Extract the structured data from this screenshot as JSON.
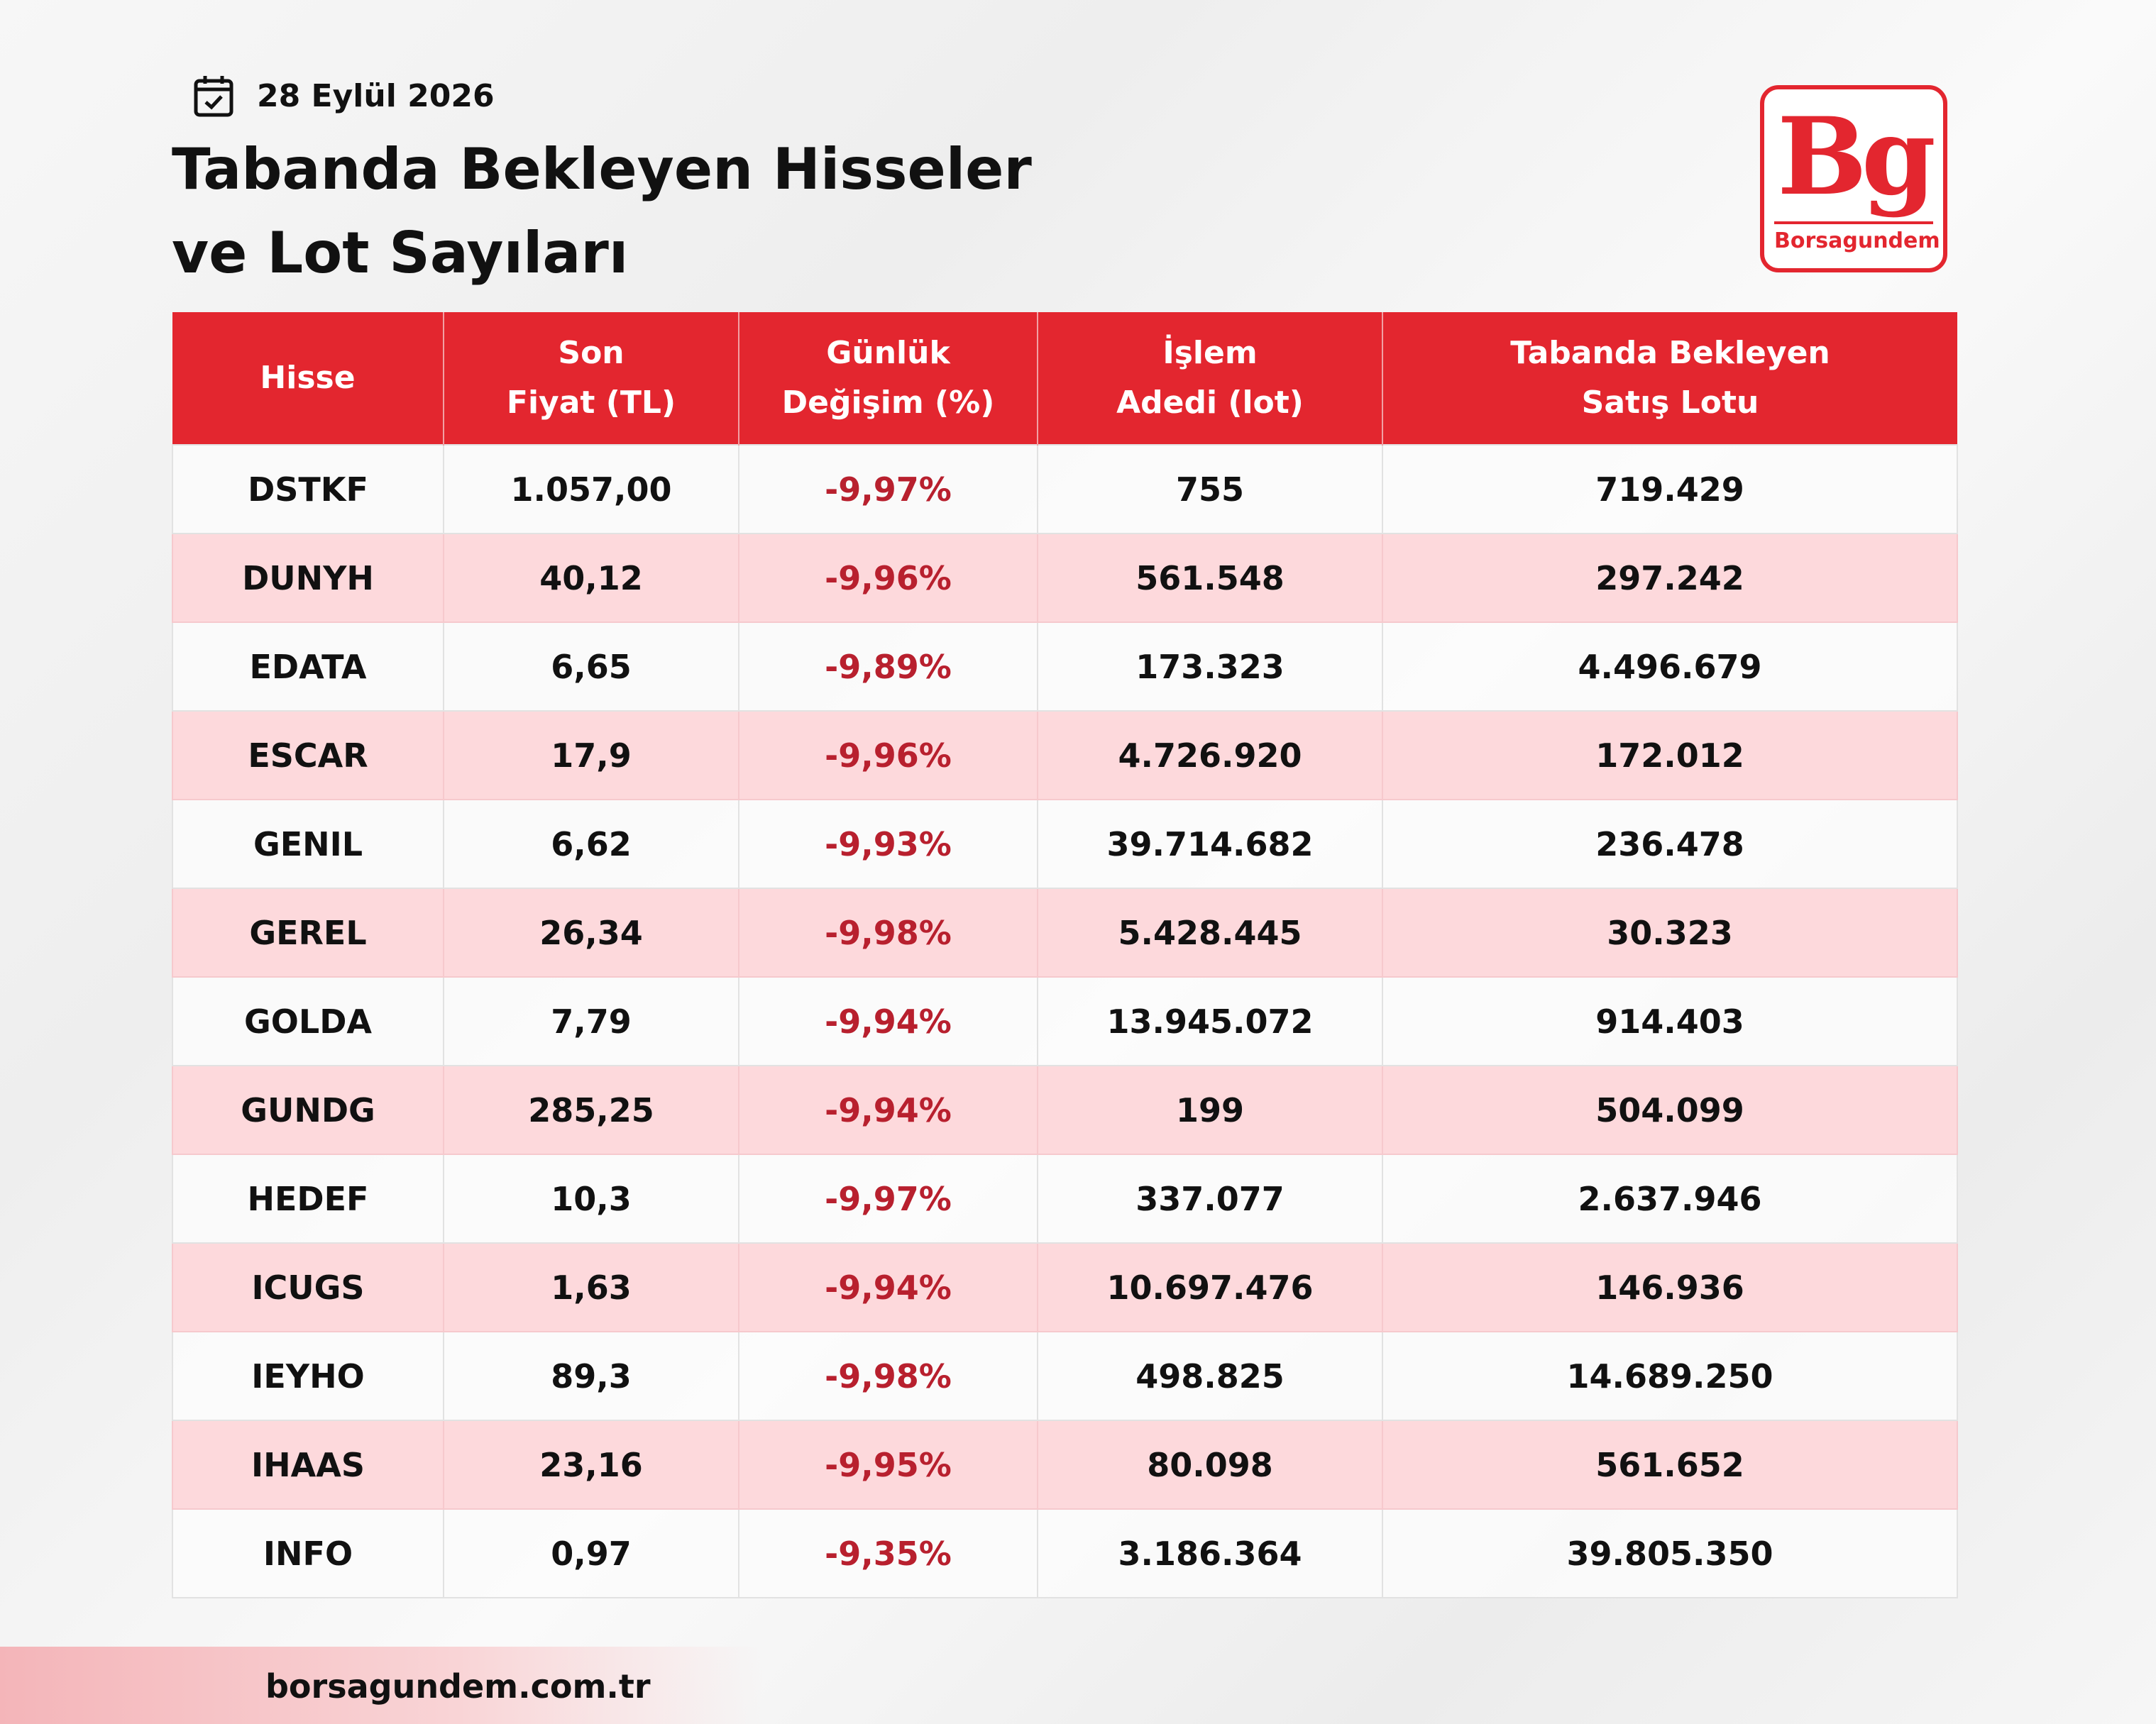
{
  "header": {
    "date": "28 Eylül 2026",
    "title_lines": [
      "Tabanda Bekleyen Hisseler",
      "ve Lot Sayıları"
    ]
  },
  "logo": {
    "mark": "Bg",
    "name": "Borsagundem"
  },
  "table": {
    "columns": [
      [
        "Hisse"
      ],
      [
        "Son",
        "Fiyat (TL)"
      ],
      [
        "Günlük",
        "Değişim (%)"
      ],
      [
        "İşlem",
        "Adedi (lot)"
      ],
      [
        "Tabanda Bekleyen",
        "Satış Lotu"
      ]
    ],
    "rows": [
      [
        "DSTKF",
        "1.057,00",
        "-9,97%",
        "755",
        "719.429"
      ],
      [
        "DUNYH",
        "40,12",
        "-9,96%",
        "561.548",
        "297.242"
      ],
      [
        "EDATA",
        "6,65",
        "-9,89%",
        "173.323",
        "4.496.679"
      ],
      [
        "ESCAR",
        "17,9",
        "-9,96%",
        "4.726.920",
        "172.012"
      ],
      [
        "GENIL",
        "6,62",
        "-9,93%",
        "39.714.682",
        "236.478"
      ],
      [
        "GEREL",
        "26,34",
        "-9,98%",
        "5.428.445",
        "30.323"
      ],
      [
        "GOLDA",
        "7,79",
        "-9,94%",
        "13.945.072",
        "914.403"
      ],
      [
        "GUNDG",
        "285,25",
        "-9,94%",
        "199",
        "504.099"
      ],
      [
        "HEDEF",
        "10,3",
        "-9,97%",
        "337.077",
        "2.637.946"
      ],
      [
        "ICUGS",
        "1,63",
        "-9,94%",
        "10.697.476",
        "146.936"
      ],
      [
        "IEYHO",
        "89,3",
        "-9,98%",
        "498.825",
        "14.689.250"
      ],
      [
        "IHAAS",
        "23,16",
        "-9,95%",
        "80.098",
        "561.652"
      ],
      [
        "INFO",
        "0,97",
        "-9,35%",
        "3.186.364",
        "39.805.350"
      ]
    ]
  },
  "footer": {
    "url": "borsagundem.com.tr"
  }
}
